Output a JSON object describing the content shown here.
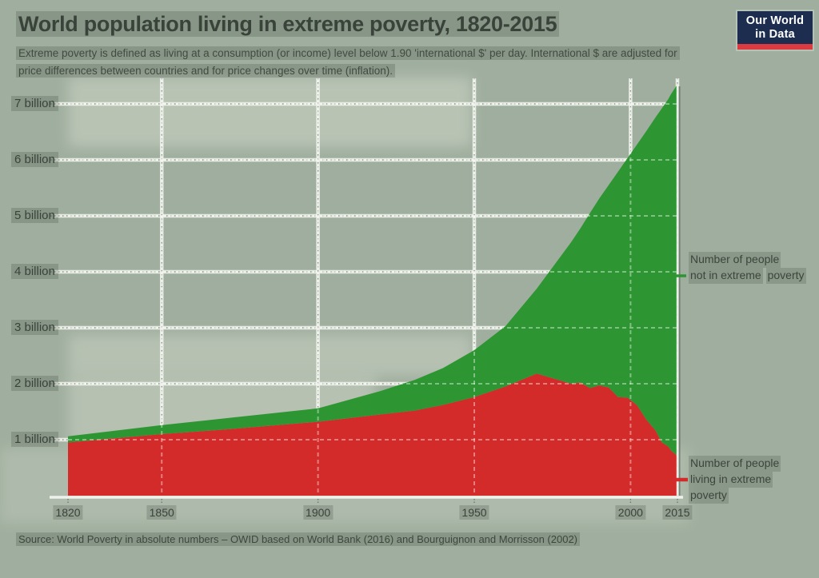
{
  "header": {
    "title": "World population living in extreme poverty, 1820-2015",
    "subtitle": "Extreme poverty is defined as living at a consumption (or income) level below 1.90 'international $' per day. International $ are adjusted for price differences between countries and for price changes over time (inflation).",
    "logo": {
      "line1": "Our World",
      "line2": "in Data",
      "bg_color": "#1c2d4f",
      "bar_color": "#dc3a41"
    }
  },
  "footer": {
    "source": "Source: World Poverty in absolute numbers – OWID based on World Bank (2016) and Bourguignon and Morrisson (2002)"
  },
  "legend": {
    "not_poor": {
      "label": "Number of people not in extreme poverty",
      "lines": [
        "Number of people",
        "not in extreme",
        "poverty"
      ],
      "color": "#2d9632"
    },
    "poor": {
      "label": "Number of people living in extreme poverty",
      "lines": [
        "Number of people",
        "living in extreme",
        "poverty"
      ],
      "color": "#d32a2a"
    }
  },
  "chart_data": {
    "type": "area",
    "stacked": true,
    "title": "World population living in extreme poverty, 1820-2015",
    "unit": "billion people",
    "x": [
      1820,
      1850,
      1870,
      1900,
      1920,
      1931,
      1940,
      1950,
      1960,
      1970,
      1981,
      1984,
      1987,
      1990,
      1993,
      1996,
      1999,
      2002,
      2005,
      2008,
      2010,
      2012,
      2013,
      2015
    ],
    "series": [
      {
        "name": "Number of people living in extreme poverty",
        "color": "#d32a2a",
        "values": [
          0.95,
          1.1,
          1.18,
          1.32,
          1.45,
          1.52,
          1.62,
          1.76,
          1.95,
          2.18,
          2.0,
          2.02,
          1.92,
          1.97,
          1.93,
          1.76,
          1.75,
          1.62,
          1.36,
          1.16,
          0.95,
          0.88,
          0.8,
          0.71
        ]
      },
      {
        "name": "Number of people not in extreme poverty",
        "color": "#2d9632",
        "values": [
          0.11,
          0.16,
          0.2,
          0.24,
          0.42,
          0.55,
          0.66,
          0.84,
          1.08,
          1.52,
          2.53,
          2.76,
          3.13,
          3.34,
          3.62,
          4.03,
          4.28,
          4.65,
          5.15,
          5.6,
          5.97,
          6.2,
          6.38,
          6.64
        ]
      }
    ],
    "xlim": [
      1820,
      2015
    ],
    "ylim": [
      0,
      7.5
    ],
    "ytick_labels": [
      "7 billion",
      "6 billion",
      "5 billion",
      "4 billion",
      "3 billion",
      "2 billion",
      "1 billion"
    ],
    "ytick_values": [
      7,
      6,
      5,
      4,
      3,
      2,
      1
    ],
    "xticks": [
      1820,
      1850,
      1900,
      1950,
      2000,
      2015
    ],
    "grid_years": [
      1850,
      1900,
      1950,
      2000,
      2015
    ],
    "grid": "dashed",
    "legend_position": "right"
  }
}
